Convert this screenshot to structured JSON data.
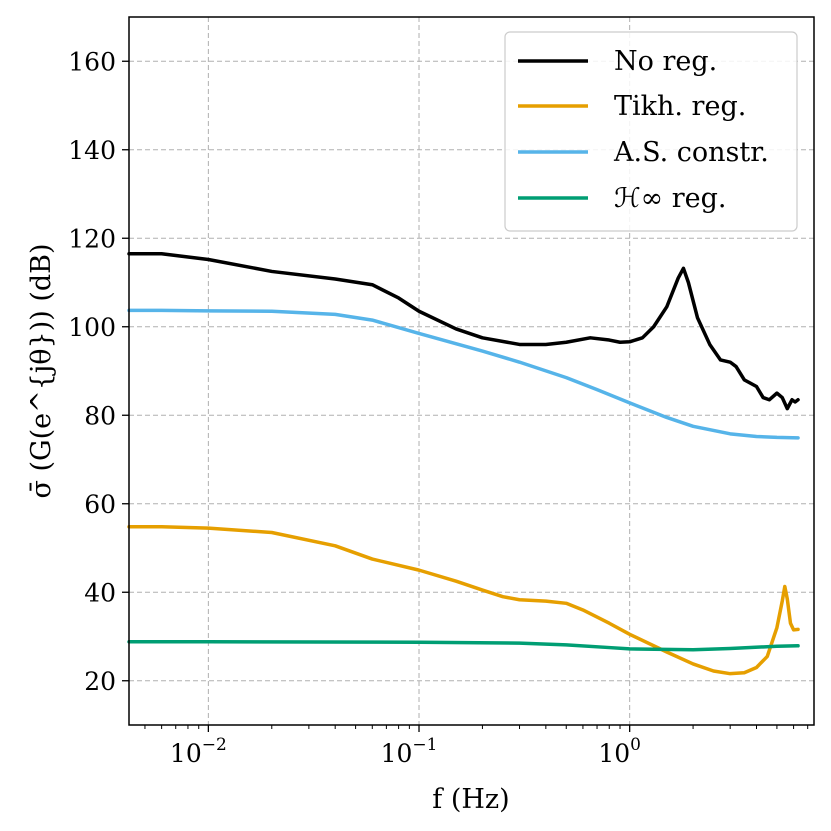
{
  "chart_data": {
    "type": "line",
    "title": "",
    "xlabel": "f (Hz)",
    "ylabel": "σ̄ (G(e^{jθ})) (dB)",
    "xscale": "log",
    "xlim": [
      0.0042,
      7.5
    ],
    "ylim": [
      10,
      170
    ],
    "grid": true,
    "legend_position": "top-right",
    "x_ticks": [
      {
        "value": 0.01,
        "base": "10",
        "exp": "−2"
      },
      {
        "value": 0.1,
        "base": "10",
        "exp": "−1"
      },
      {
        "value": 1,
        "base": "10",
        "exp": "0"
      }
    ],
    "y_ticks": [
      {
        "value": 20,
        "label": "20"
      },
      {
        "value": 40,
        "label": "40"
      },
      {
        "value": 60,
        "label": "60"
      },
      {
        "value": 80,
        "label": "80"
      },
      {
        "value": 100,
        "label": "100"
      },
      {
        "value": 120,
        "label": "120"
      },
      {
        "value": 140,
        "label": "140"
      },
      {
        "value": 160,
        "label": "160"
      }
    ],
    "series": [
      {
        "name": "No reg.",
        "color": "#000000",
        "points": [
          [
            0.0042,
            116.5
          ],
          [
            0.006,
            116.5
          ],
          [
            0.01,
            115.2
          ],
          [
            0.02,
            112.5
          ],
          [
            0.04,
            110.8
          ],
          [
            0.06,
            109.5
          ],
          [
            0.08,
            106.5
          ],
          [
            0.1,
            103.5
          ],
          [
            0.15,
            99.5
          ],
          [
            0.2,
            97.5
          ],
          [
            0.3,
            96.0
          ],
          [
            0.4,
            96.0
          ],
          [
            0.5,
            96.5
          ],
          [
            0.65,
            97.5
          ],
          [
            0.8,
            97.0
          ],
          [
            0.9,
            96.5
          ],
          [
            1.0,
            96.6
          ],
          [
            1.15,
            97.5
          ],
          [
            1.3,
            100.0
          ],
          [
            1.5,
            104.5
          ],
          [
            1.7,
            111.0
          ],
          [
            1.8,
            113.2
          ],
          [
            1.9,
            110.0
          ],
          [
            2.1,
            102.0
          ],
          [
            2.4,
            96.0
          ],
          [
            2.7,
            92.5
          ],
          [
            3.0,
            92.0
          ],
          [
            3.2,
            91.0
          ],
          [
            3.5,
            88.0
          ],
          [
            4.0,
            86.5
          ],
          [
            4.3,
            84.0
          ],
          [
            4.6,
            83.5
          ],
          [
            5.0,
            85.0
          ],
          [
            5.3,
            84.0
          ],
          [
            5.6,
            81.5
          ],
          [
            5.9,
            83.5
          ],
          [
            6.1,
            83.0
          ],
          [
            6.3,
            83.5
          ]
        ]
      },
      {
        "name": "Tikh. reg.",
        "color": "#E69F00",
        "points": [
          [
            0.0042,
            54.8
          ],
          [
            0.006,
            54.8
          ],
          [
            0.01,
            54.5
          ],
          [
            0.02,
            53.5
          ],
          [
            0.04,
            50.5
          ],
          [
            0.06,
            47.5
          ],
          [
            0.1,
            45.0
          ],
          [
            0.15,
            42.5
          ],
          [
            0.2,
            40.5
          ],
          [
            0.25,
            39.0
          ],
          [
            0.3,
            38.3
          ],
          [
            0.4,
            38.0
          ],
          [
            0.5,
            37.5
          ],
          [
            0.6,
            36.0
          ],
          [
            0.8,
            33.0
          ],
          [
            1.0,
            30.5
          ],
          [
            1.5,
            26.5
          ],
          [
            2.0,
            23.8
          ],
          [
            2.5,
            22.2
          ],
          [
            3.0,
            21.6
          ],
          [
            3.5,
            21.8
          ],
          [
            4.0,
            23.0
          ],
          [
            4.5,
            25.5
          ],
          [
            5.0,
            32.0
          ],
          [
            5.3,
            38.0
          ],
          [
            5.45,
            41.3
          ],
          [
            5.6,
            38.5
          ],
          [
            5.8,
            33.0
          ],
          [
            6.0,
            31.5
          ],
          [
            6.3,
            31.6
          ]
        ]
      },
      {
        "name": "A.S. constr.",
        "color": "#56B4E9",
        "points": [
          [
            0.0042,
            103.7
          ],
          [
            0.006,
            103.7
          ],
          [
            0.01,
            103.6
          ],
          [
            0.02,
            103.5
          ],
          [
            0.04,
            102.8
          ],
          [
            0.06,
            101.5
          ],
          [
            0.1,
            98.5
          ],
          [
            0.2,
            94.5
          ],
          [
            0.3,
            92.0
          ],
          [
            0.5,
            88.5
          ],
          [
            0.7,
            85.8
          ],
          [
            1.0,
            82.8
          ],
          [
            1.5,
            79.5
          ],
          [
            2.0,
            77.5
          ],
          [
            3.0,
            75.8
          ],
          [
            4.0,
            75.2
          ],
          [
            5.0,
            75.0
          ],
          [
            6.3,
            74.9
          ]
        ]
      },
      {
        "name": "ℋ∞ reg.",
        "color": "#009E73",
        "points": [
          [
            0.0042,
            28.8
          ],
          [
            0.01,
            28.8
          ],
          [
            0.1,
            28.7
          ],
          [
            0.3,
            28.5
          ],
          [
            0.5,
            28.1
          ],
          [
            0.8,
            27.5
          ],
          [
            1.0,
            27.2
          ],
          [
            2.0,
            27.0
          ],
          [
            3.0,
            27.3
          ],
          [
            5.0,
            27.8
          ],
          [
            6.3,
            27.9
          ]
        ]
      }
    ]
  }
}
